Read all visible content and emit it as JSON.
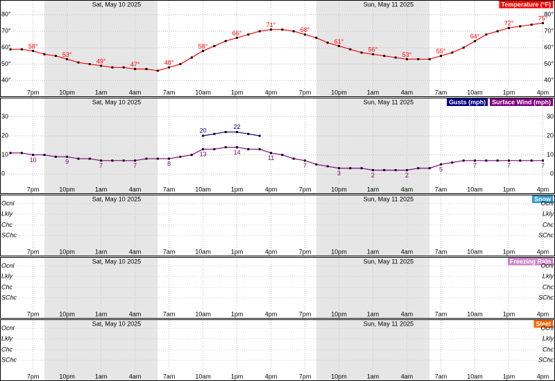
{
  "time_axis": {
    "dates": [
      "Sat, May 10 2025",
      "Sun, May 11 2025"
    ],
    "labels": [
      "7pm",
      "10pm",
      "1am",
      "4am",
      "7am",
      "10am",
      "1pm",
      "4pm",
      "7pm",
      "10pm",
      "1am",
      "4am",
      "7am",
      "10am",
      "1pm",
      "4pm"
    ],
    "nights": [
      {
        "start": 3,
        "end": 13
      },
      {
        "start": 27,
        "end": 37
      }
    ]
  },
  "chart_data": [
    {
      "type": "line",
      "series": [
        {
          "name": "Temperature (°F)",
          "color": "#ff0000",
          "values": [
            59,
            59,
            58,
            56,
            55,
            53,
            51,
            50,
            49,
            48,
            48,
            47,
            47,
            46,
            48,
            50,
            54,
            58,
            61,
            64,
            66,
            68,
            70,
            71,
            71,
            70,
            68,
            66,
            63,
            61,
            59,
            57,
            56,
            55,
            54,
            53,
            53,
            53,
            55,
            57,
            60,
            64,
            68,
            70,
            72,
            73,
            74,
            75
          ],
          "value_labels": [
            null,
            null,
            "58°",
            null,
            null,
            "53°",
            null,
            null,
            "49°",
            null,
            null,
            "47°",
            null,
            null,
            "48°",
            null,
            null,
            "58°",
            null,
            null,
            "66°",
            null,
            null,
            "71°",
            null,
            null,
            "68°",
            null,
            null,
            "61°",
            null,
            null,
            "56°",
            null,
            null,
            "53°",
            null,
            null,
            "55°",
            null,
            null,
            "64°",
            null,
            null,
            "72°",
            null,
            null,
            "75°"
          ]
        }
      ],
      "ylim": [
        30,
        89
      ],
      "yticks": [
        {
          "value": 40,
          "label": "40°"
        },
        {
          "value": 50,
          "label": "50°"
        },
        {
          "value": 60,
          "label": "60°"
        },
        {
          "value": 70,
          "label": "70°"
        },
        {
          "value": 80,
          "label": "80°"
        }
      ]
    },
    {
      "type": "line",
      "series": [
        {
          "name": "Gusts (mph)",
          "color": "#000080",
          "values": [
            null,
            null,
            null,
            null,
            null,
            null,
            null,
            null,
            null,
            null,
            null,
            null,
            null,
            null,
            null,
            null,
            null,
            20,
            21,
            22,
            22,
            21,
            20,
            null,
            null,
            null,
            null,
            null,
            null,
            null,
            null,
            null,
            null,
            null,
            null,
            null,
            null,
            null,
            null,
            null,
            null,
            null,
            null,
            null,
            null,
            null,
            null,
            null
          ]
        },
        {
          "name": "Surface Wind (mph)",
          "color": "#800080",
          "values": [
            11,
            11,
            10,
            10,
            9,
            9,
            8,
            8,
            7,
            7,
            7,
            7,
            8,
            8,
            8,
            9,
            10,
            13,
            13,
            14,
            14,
            13,
            13,
            11,
            10,
            8,
            7,
            5,
            4,
            3,
            3,
            3,
            2,
            2,
            2,
            2,
            3,
            3,
            5,
            6,
            7,
            7,
            7,
            7,
            7,
            7,
            7,
            7
          ]
        }
      ],
      "ylim": [
        -10.5,
        40
      ],
      "yticks": [
        0,
        10,
        20,
        30
      ]
    },
    {
      "type": "category",
      "levels": [
        "Ocnl",
        "Lkly",
        "Chc",
        "SChc"
      ],
      "series": [
        {
          "name": "Snow",
          "color": "#3399cc",
          "values": []
        }
      ]
    },
    {
      "type": "category",
      "levels": [
        "Ocnl",
        "Lkly",
        "Chc",
        "SChc"
      ],
      "series": [
        {
          "name": "Freezing Rain",
          "color": "#cc88cc",
          "values": []
        }
      ]
    },
    {
      "type": "category",
      "levels": [
        "Ocnl",
        "Lkly",
        "Chc",
        "SChc"
      ],
      "series": [
        {
          "name": "Sleet",
          "color": "#ff6600",
          "values": []
        }
      ]
    }
  ]
}
